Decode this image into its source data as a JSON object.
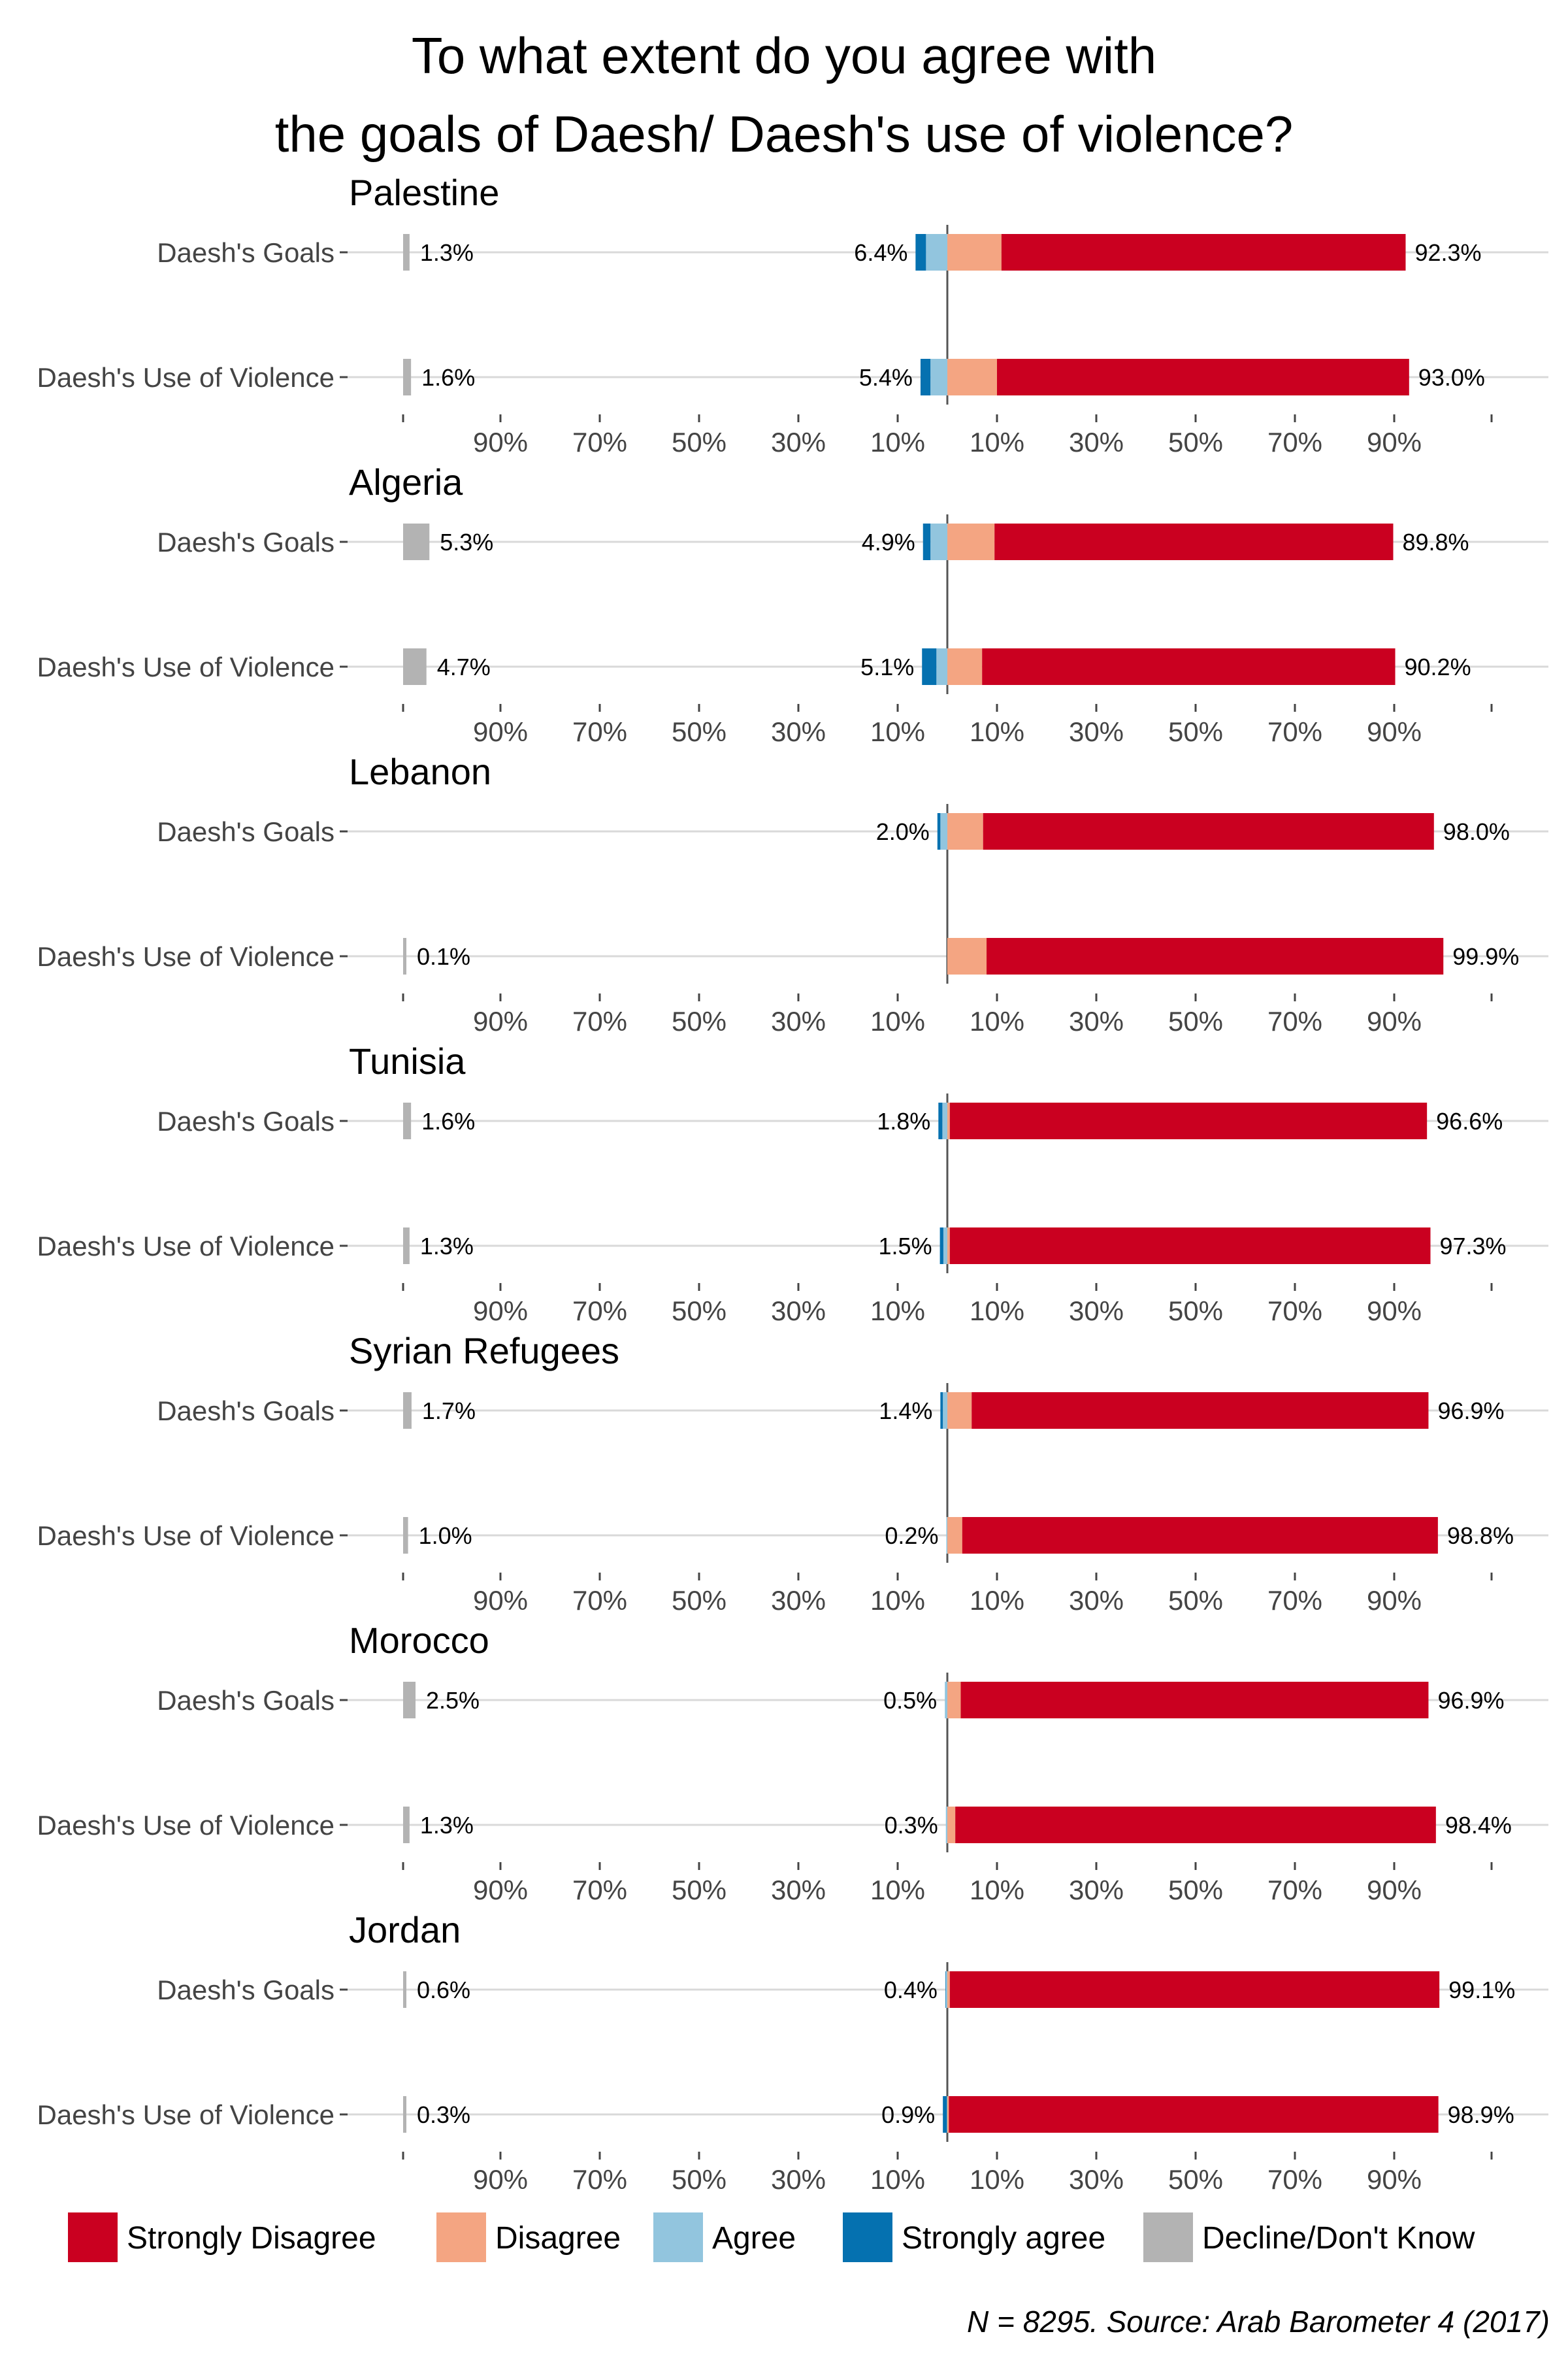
{
  "chart_data": {
    "type": "bar",
    "subtype": "diverging-stacked-bar",
    "title_lines": [
      "To what extent do you agree with",
      "the goals of Daesh/ Daesh's use of violence?"
    ],
    "caption": "N = 8295. Source: Arab Barometer 4 (2017)",
    "tick_labels_left": [
      "90%",
      "70%",
      "50%",
      "30%",
      "10%"
    ],
    "tick_labels_right": [
      "10%",
      "30%",
      "50%",
      "70%",
      "90%"
    ],
    "legend_position": "bottom",
    "colors": {
      "strongly_disagree": "#ca0020",
      "disagree": "#f4a582",
      "agree": "#92c5de",
      "strongly_agree": "#0571b0",
      "decline": "#b3b3b3"
    },
    "legend": [
      {
        "key": "strongly_disagree",
        "label": "Strongly Disagree"
      },
      {
        "key": "disagree",
        "label": "Disagree"
      },
      {
        "key": "agree",
        "label": "Agree"
      },
      {
        "key": "strongly_agree",
        "label": "Strongly agree"
      },
      {
        "key": "decline",
        "label": "Decline/Don't Know"
      }
    ],
    "panels": [
      {
        "name": "Palestine",
        "rows": [
          {
            "label": "Daesh's Goals",
            "strongly_disagree": 81.4,
            "disagree": 10.9,
            "agree": 4.3,
            "strongly_agree": 2.1,
            "decline": 1.3,
            "disagree_total": "92.3%",
            "agree_total": "6.4%",
            "decline_label": "1.3%"
          },
          {
            "label": "Daesh's Use of Violence",
            "strongly_disagree": 83.0,
            "disagree": 10.0,
            "agree": 3.4,
            "strongly_agree": 2.0,
            "decline": 1.6,
            "disagree_total": "93.0%",
            "agree_total": "5.4%",
            "decline_label": "1.6%"
          }
        ]
      },
      {
        "name": "Algeria",
        "rows": [
          {
            "label": "Daesh's Goals",
            "strongly_disagree": 80.3,
            "disagree": 9.5,
            "agree": 3.4,
            "strongly_agree": 1.5,
            "decline": 5.3,
            "disagree_total": "89.8%",
            "agree_total": "4.9%",
            "decline_label": "5.3%"
          },
          {
            "label": "Daesh's Use of Violence",
            "strongly_disagree": 83.2,
            "disagree": 7.0,
            "agree": 2.2,
            "strongly_agree": 2.9,
            "decline": 4.7,
            "disagree_total": "90.2%",
            "agree_total": "5.1%",
            "decline_label": "4.7%"
          }
        ]
      },
      {
        "name": "Lebanon",
        "rows": [
          {
            "label": "Daesh's Goals",
            "strongly_disagree": 90.8,
            "disagree": 7.2,
            "agree": 1.4,
            "strongly_agree": 0.6,
            "decline": 0,
            "disagree_total": "98.0%",
            "agree_total": "2.0%",
            "decline_label": ""
          },
          {
            "label": "Daesh's Use of Violence",
            "strongly_disagree": 92.0,
            "disagree": 7.9,
            "agree": 0,
            "strongly_agree": 0,
            "decline": 0.1,
            "disagree_total": "99.9%",
            "agree_total": "",
            "decline_label": "0.1%"
          }
        ]
      },
      {
        "name": "Tunisia",
        "rows": [
          {
            "label": "Daesh's Goals",
            "strongly_disagree": 96.1,
            "disagree": 0.5,
            "agree": 1.0,
            "strongly_agree": 0.8,
            "decline": 1.6,
            "disagree_total": "96.6%",
            "agree_total": "1.8%",
            "decline_label": "1.6%"
          },
          {
            "label": "Daesh's Use of Violence",
            "strongly_disagree": 96.8,
            "disagree": 0.5,
            "agree": 0.8,
            "strongly_agree": 0.7,
            "decline": 1.3,
            "disagree_total": "97.3%",
            "agree_total": "1.5%",
            "decline_label": "1.3%"
          }
        ]
      },
      {
        "name": "Syrian Refugees",
        "rows": [
          {
            "label": "Daesh's Goals",
            "strongly_disagree": 92.0,
            "disagree": 4.9,
            "agree": 0.9,
            "strongly_agree": 0.5,
            "decline": 1.7,
            "disagree_total": "96.9%",
            "agree_total": "1.4%",
            "decline_label": "1.7%"
          },
          {
            "label": "Daesh's Use of Violence",
            "strongly_disagree": 95.8,
            "disagree": 3.0,
            "agree": 0.2,
            "strongly_agree": 0,
            "decline": 1.0,
            "disagree_total": "98.8%",
            "agree_total": "0.2%",
            "decline_label": "1.0%"
          }
        ]
      },
      {
        "name": "Morocco",
        "rows": [
          {
            "label": "Daesh's Goals",
            "strongly_disagree": 94.2,
            "disagree": 2.7,
            "agree": 0.5,
            "strongly_agree": 0,
            "decline": 2.5,
            "disagree_total": "96.9%",
            "agree_total": "0.5%",
            "decline_label": "2.5%"
          },
          {
            "label": "Daesh's Use of Violence",
            "strongly_disagree": 96.8,
            "disagree": 1.6,
            "agree": 0.3,
            "strongly_agree": 0,
            "decline": 1.3,
            "disagree_total": "98.4%",
            "agree_total": "0.3%",
            "decline_label": "1.3%"
          }
        ]
      },
      {
        "name": "Jordan",
        "rows": [
          {
            "label": "Daesh's Goals",
            "strongly_disagree": 98.6,
            "disagree": 0.5,
            "agree": 0.3,
            "strongly_agree": 0.1,
            "decline": 0.6,
            "disagree_total": "99.1%",
            "agree_total": "0.4%",
            "decline_label": "0.6%"
          },
          {
            "label": "Daesh's Use of Violence",
            "strongly_disagree": 98.6,
            "disagree": 0.3,
            "agree": 0.1,
            "strongly_agree": 0.8,
            "decline": 0.3,
            "disagree_total": "98.9%",
            "agree_total": "0.9%",
            "decline_label": "0.3%"
          }
        ]
      }
    ]
  }
}
